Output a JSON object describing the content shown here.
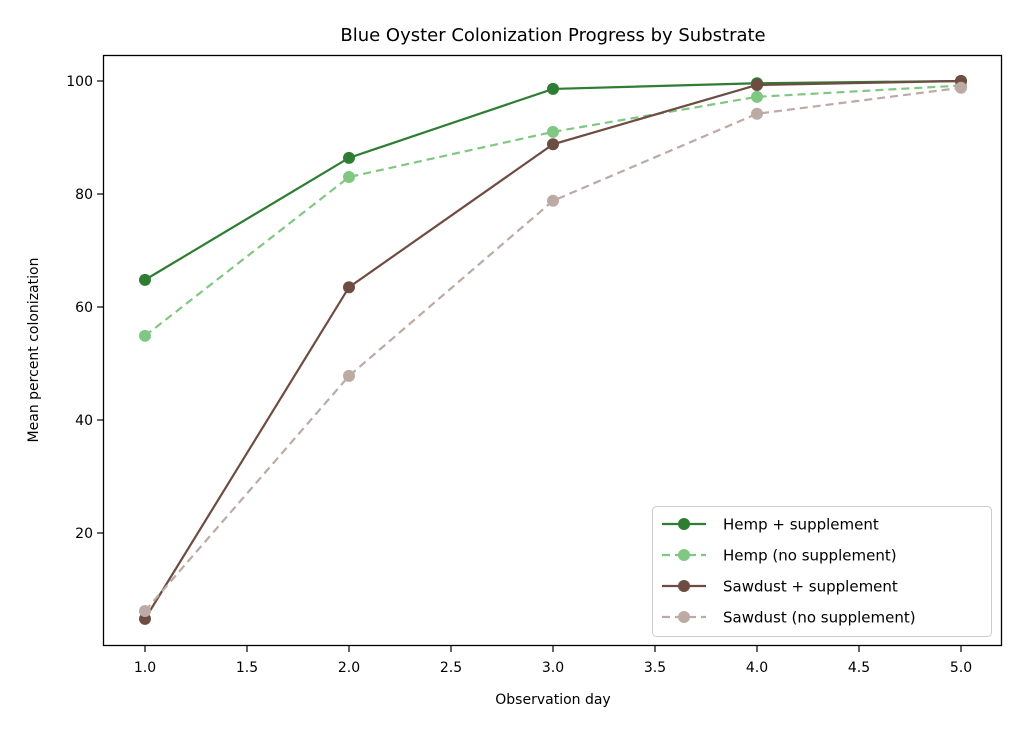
{
  "chart_data": {
    "type": "line",
    "title": "Blue Oyster Colonization Progress by Substrate",
    "xlabel": "Observation day",
    "ylabel": "Mean percent colonization",
    "x": [
      1,
      2,
      3,
      4,
      5
    ],
    "xlim": [
      0.8,
      5.2
    ],
    "ylim": [
      0.7,
      104.7
    ],
    "xticks": [
      "1.0",
      "1.5",
      "2.0",
      "2.5",
      "3.0",
      "3.5",
      "4.0",
      "4.5",
      "5.0"
    ],
    "yticks": [
      "20",
      "40",
      "60",
      "80",
      "100"
    ],
    "grid": false,
    "legend_position": "lower right",
    "series": [
      {
        "name": "Hemp + supplement",
        "color": "#2e7d32",
        "linestyle": "solid",
        "marker": "circle",
        "values": [
          64.8,
          86.4,
          98.6,
          99.6,
          100.0
        ]
      },
      {
        "name": "Hemp (no supplement)",
        "color": "#81c784",
        "linestyle": "dashed",
        "marker": "circle",
        "values": [
          54.9,
          83.0,
          91.0,
          97.2,
          99.2
        ]
      },
      {
        "name": "Sawdust + supplement",
        "color": "#6d4c41",
        "linestyle": "solid",
        "marker": "circle",
        "values": [
          4.8,
          63.5,
          88.8,
          99.3,
          100.0
        ]
      },
      {
        "name": "Sawdust (no supplement)",
        "color": "#bcaaa4",
        "linestyle": "dashed",
        "marker": "circle",
        "values": [
          6.2,
          47.8,
          78.8,
          94.2,
          98.8
        ]
      }
    ]
  }
}
